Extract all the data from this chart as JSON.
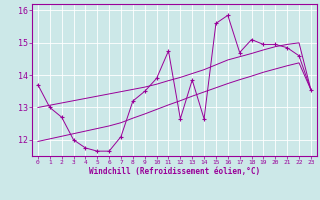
{
  "x": [
    0,
    1,
    2,
    3,
    4,
    5,
    6,
    7,
    8,
    9,
    10,
    11,
    12,
    13,
    14,
    15,
    16,
    17,
    18,
    19,
    20,
    21,
    22,
    23
  ],
  "y_main": [
    13.7,
    13.0,
    12.7,
    12.0,
    11.75,
    11.65,
    11.65,
    12.1,
    13.2,
    13.5,
    13.9,
    14.75,
    12.65,
    13.85,
    12.65,
    15.6,
    15.85,
    14.7,
    15.1,
    14.95,
    14.95,
    14.85,
    14.6,
    13.55
  ],
  "y_line1": [
    13.0,
    13.07,
    13.14,
    13.21,
    13.28,
    13.35,
    13.42,
    13.49,
    13.56,
    13.63,
    13.72,
    13.83,
    13.93,
    14.05,
    14.17,
    14.32,
    14.47,
    14.57,
    14.67,
    14.78,
    14.88,
    14.95,
    15.0,
    13.55
  ],
  "y_line2": [
    11.95,
    12.03,
    12.11,
    12.19,
    12.27,
    12.35,
    12.43,
    12.53,
    12.67,
    12.8,
    12.94,
    13.08,
    13.21,
    13.35,
    13.48,
    13.61,
    13.74,
    13.86,
    13.97,
    14.09,
    14.19,
    14.29,
    14.38,
    13.55
  ],
  "ylim": [
    11.5,
    16.2
  ],
  "xlim": [
    -0.5,
    23.5
  ],
  "yticks": [
    12,
    13,
    14,
    15,
    16
  ],
  "xticks": [
    0,
    1,
    2,
    3,
    4,
    5,
    6,
    7,
    8,
    9,
    10,
    11,
    12,
    13,
    14,
    15,
    16,
    17,
    18,
    19,
    20,
    21,
    22,
    23
  ],
  "color": "#990099",
  "bg_color": "#cce8e8",
  "grid_color": "#ffffff",
  "xlabel": "Windchill (Refroidissement éolien,°C)"
}
